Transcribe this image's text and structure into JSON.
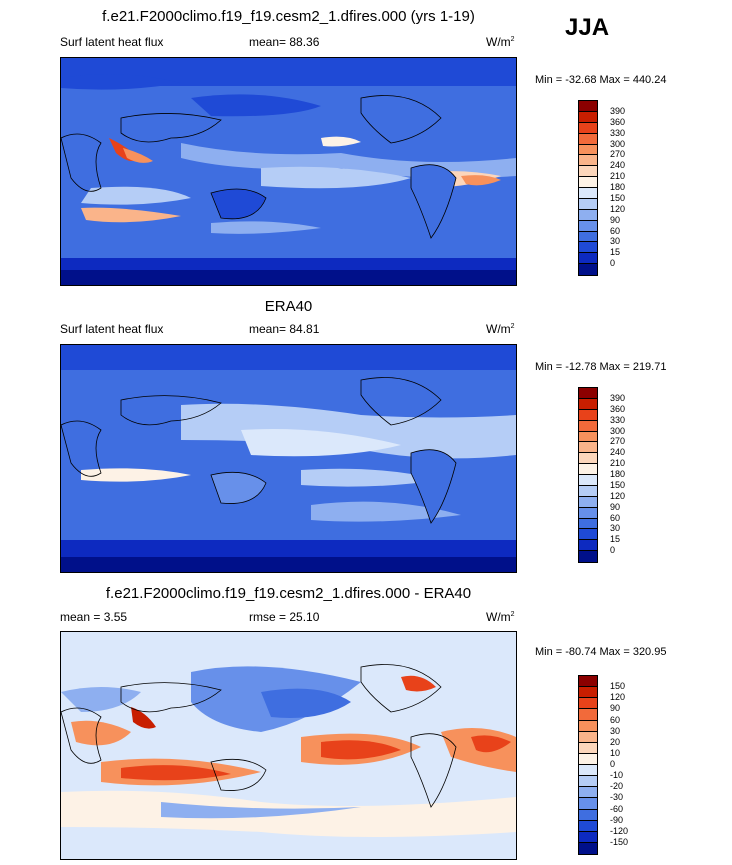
{
  "season": "JJA",
  "panels": [
    {
      "title": "f.e21.F2000climo.f19_f19.cesm2_1.dfires.000 (yrs 1-19)",
      "left_label": "Surf latent heat flux",
      "center_label": "mean=  88.36",
      "units": "W/m",
      "units_sup": "2",
      "minmax": "Min = -32.68 Max = 440.24",
      "colorbar_labels": [
        "390",
        "360",
        "330",
        "300",
        "270",
        "240",
        "210",
        "180",
        "150",
        "120",
        "90",
        "60",
        "30",
        "15",
        "0"
      ],
      "colorbar_colors": [
        "#8b0000",
        "#c81e00",
        "#e8421a",
        "#f26a3a",
        "#f7915c",
        "#fab48a",
        "#fcd6bb",
        "#fdf2e6",
        "#dbe8fb",
        "#b5cdf6",
        "#8eaff0",
        "#6790ea",
        "#3f6ee0",
        "#1f4ad6",
        "#0d2ac0",
        "#00108a"
      ]
    },
    {
      "title": "ERA40",
      "left_label": "Surf latent heat flux",
      "center_label": "mean=  84.81",
      "units": "W/m",
      "units_sup": "2",
      "minmax": "Min = -12.78 Max = 219.71",
      "colorbar_labels": [
        "390",
        "360",
        "330",
        "300",
        "270",
        "240",
        "210",
        "180",
        "150",
        "120",
        "90",
        "60",
        "30",
        "15",
        "0"
      ],
      "colorbar_colors": [
        "#8b0000",
        "#c81e00",
        "#e8421a",
        "#f26a3a",
        "#f7915c",
        "#fab48a",
        "#fcd6bb",
        "#fdf2e6",
        "#dbe8fb",
        "#b5cdf6",
        "#8eaff0",
        "#6790ea",
        "#3f6ee0",
        "#1f4ad6",
        "#0d2ac0",
        "#00108a"
      ]
    },
    {
      "title": "f.e21.F2000climo.f19_f19.cesm2_1.dfires.000 - ERA40",
      "left_label": "mean =   3.55",
      "center_label": "rmse =  25.10",
      "units": "W/m",
      "units_sup": "2",
      "minmax": "Min = -80.74 Max = 320.95",
      "colorbar_labels": [
        "150",
        "120",
        "90",
        "60",
        "30",
        "20",
        "10",
        "0",
        "-10",
        "-20",
        "-30",
        "-60",
        "-90",
        "-120",
        "-150"
      ],
      "colorbar_colors": [
        "#8b0000",
        "#c81e00",
        "#e8421a",
        "#f26a3a",
        "#f7915c",
        "#fab48a",
        "#fcd6bb",
        "#fdf2e6",
        "#dbe8fb",
        "#b5cdf6",
        "#8eaff0",
        "#6790ea",
        "#3f6ee0",
        "#1f4ad6",
        "#0d2ac0",
        "#00108a"
      ]
    }
  ]
}
